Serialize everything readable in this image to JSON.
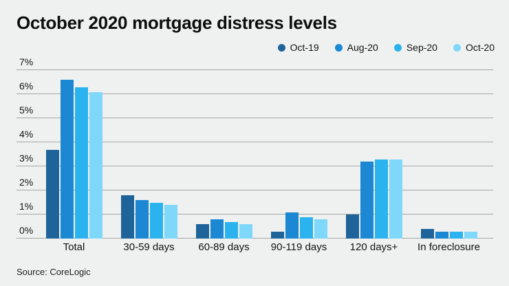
{
  "header": {
    "title": "October 2020 mortgage distress levels"
  },
  "footer": {
    "source": "Source: CoreLogic"
  },
  "colors": {
    "background": "#eff1f0",
    "gridline": "#a4a7a6",
    "text": "#0e0e0e"
  },
  "chart_data": {
    "type": "bar",
    "title": "October 2020 mortgage distress levels",
    "categories": [
      "Total",
      "30-59 days",
      "60-89 days",
      "90-119 days",
      "120 days+",
      "In foreclosure"
    ],
    "series": [
      {
        "name": "Oct-19",
        "color": "#1e6399",
        "values": [
          3.7,
          1.8,
          0.6,
          0.3,
          1.0,
          0.4
        ]
      },
      {
        "name": "Aug-20",
        "color": "#1c87d2",
        "values": [
          6.6,
          1.6,
          0.8,
          1.1,
          3.2,
          0.3
        ]
      },
      {
        "name": "Sep-20",
        "color": "#2ab3ee",
        "values": [
          6.3,
          1.5,
          0.7,
          0.9,
          3.3,
          0.3
        ]
      },
      {
        "name": "Oct-20",
        "color": "#7fd8fa",
        "values": [
          6.1,
          1.4,
          0.6,
          0.8,
          3.3,
          0.3
        ]
      }
    ],
    "xlabel": "",
    "ylabel": "",
    "ylim": [
      0,
      7
    ],
    "yticks": [
      "0%",
      "1%",
      "2%",
      "3%",
      "4%",
      "5%",
      "6%",
      "7%"
    ],
    "grid": true,
    "legend_position": "top-right",
    "source": "Source: CoreLogic"
  }
}
